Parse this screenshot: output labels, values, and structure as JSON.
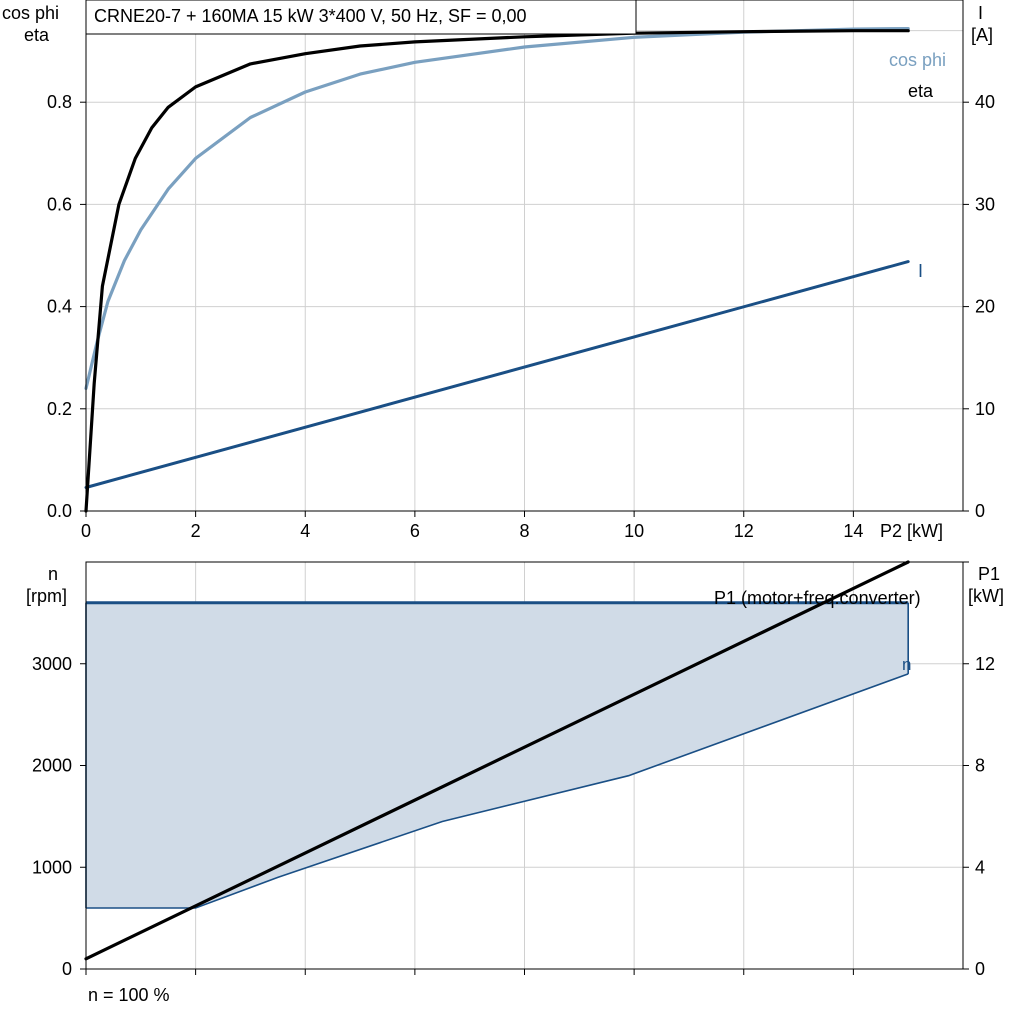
{
  "chart_data": [
    {
      "type": "line",
      "title": "CRNE20-7 + 160MA   15 kW   3*400 V, 50 Hz, SF = 0,00",
      "xlabel": "P2 [kW]",
      "ylabel_left": "cos phi\neta",
      "ylabel_left_lines": [
        "cos phi",
        "eta"
      ],
      "ylabel_right_lines": [
        "I",
        "[A]"
      ],
      "xlim": [
        0,
        16
      ],
      "ylim_left": [
        0,
        1.0
      ],
      "ylim_right": [
        0,
        50
      ],
      "x_ticks": [
        0,
        2,
        4,
        6,
        8,
        10,
        12,
        14
      ],
      "y_ticks_left": [
        "0.0",
        "0.2",
        "0.4",
        "0.6",
        "0.8"
      ],
      "y_tick_values_left": [
        0,
        0.2,
        0.4,
        0.6,
        0.8
      ],
      "y_ticks_right": [
        0,
        10,
        20,
        30,
        40
      ],
      "grid": true,
      "series": [
        {
          "name": "eta",
          "axis": "left",
          "color": "#000000",
          "x": [
            0,
            0.15,
            0.3,
            0.6,
            0.9,
            1.2,
            1.5,
            2,
            3,
            4,
            5,
            6,
            8,
            10,
            12,
            14,
            15
          ],
          "y": [
            0.0,
            0.25,
            0.44,
            0.6,
            0.69,
            0.75,
            0.79,
            0.83,
            0.875,
            0.895,
            0.91,
            0.918,
            0.928,
            0.935,
            0.938,
            0.94,
            0.94
          ]
        },
        {
          "name": "cos phi",
          "axis": "left",
          "color": "#7aa0c0",
          "x": [
            0,
            0.2,
            0.4,
            0.7,
            1.0,
            1.5,
            2,
            3,
            4,
            5,
            6,
            8,
            10,
            12,
            14,
            15
          ],
          "y": [
            0.24,
            0.33,
            0.41,
            0.49,
            0.55,
            0.63,
            0.69,
            0.77,
            0.82,
            0.855,
            0.878,
            0.908,
            0.927,
            0.937,
            0.943,
            0.944
          ]
        },
        {
          "name": "I",
          "axis": "right",
          "color": "#1a4f85",
          "x": [
            0,
            15
          ],
          "y": [
            2.3,
            24.4
          ]
        }
      ]
    },
    {
      "type": "area",
      "xlabel": "",
      "ylabel_left_lines": [
        "n",
        "[rpm]"
      ],
      "ylabel_right_lines": [
        "P1",
        "[kW]"
      ],
      "xlim": [
        0,
        16
      ],
      "ylim_left": [
        0,
        4000
      ],
      "ylim_right": [
        0,
        16
      ],
      "y_ticks_left": [
        0,
        1000,
        2000,
        3000
      ],
      "y_ticks_right": [
        0,
        4,
        8,
        12
      ],
      "grid": true,
      "series": [
        {
          "name": "n",
          "axis": "left",
          "color": "#1a4f85",
          "fill": "#d0dbe7",
          "upper_x": [
            0,
            15
          ],
          "upper_y": [
            3600,
            3600
          ],
          "lower_x": [
            0,
            2,
            3.5,
            6.5,
            9.9,
            15
          ],
          "lower_y": [
            600,
            600,
            900,
            1450,
            1900,
            2900
          ]
        },
        {
          "name": "P1 (motor+freq.converter)",
          "axis": "right",
          "color": "#000000",
          "x": [
            0,
            15
          ],
          "y": [
            0.4,
            16.0
          ]
        }
      ],
      "footnote": "n = 100 %"
    }
  ]
}
